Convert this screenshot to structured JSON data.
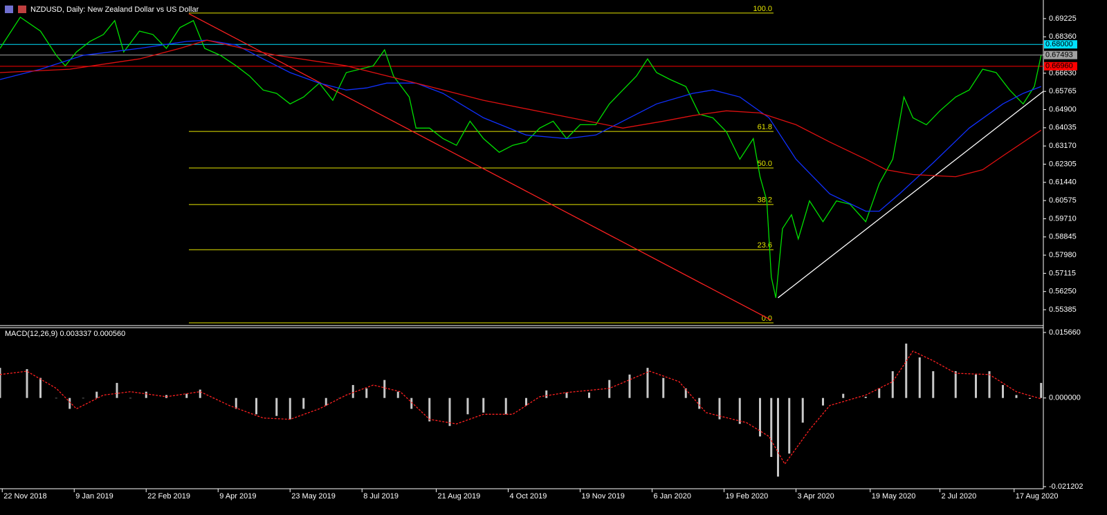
{
  "chart_data": [
    {
      "type": "line",
      "title": "NZDUSD, Daily:  New Zealand Dollar vs US Dollar",
      "xlim": [
        0,
        464
      ],
      "ylim": [
        0.5463,
        0.7011
      ],
      "yticks": [
        0.69225,
        {
          "value": 0.6836,
          "label": "0.68360"
        },
        0.67495,
        {
          "value": 0.6663,
          "label": "0.66630"
        },
        0.65765,
        {
          "value": 0.649,
          "label": "0.64900"
        },
        0.64035,
        {
          "value": 0.6317,
          "label": "0.63170"
        },
        0.62305,
        {
          "value": 0.6144,
          "label": "0.61440"
        },
        0.60575,
        {
          "value": 0.5971,
          "label": "0.59710"
        },
        0.58845,
        {
          "value": 0.5798,
          "label": "0.57980"
        },
        0.57115,
        {
          "value": 0.5625,
          "label": "0.56250"
        },
        0.55385
      ],
      "series": [
        {
          "color": "#00e000",
          "x": [
            0,
            9,
            18,
            25,
            29,
            34,
            40,
            46,
            51,
            55,
            62,
            68,
            74,
            80,
            86,
            91,
            98,
            105,
            111,
            117,
            123,
            129,
            135,
            142,
            148,
            154,
            160,
            166,
            171,
            175,
            182,
            185,
            191,
            197,
            203,
            209,
            215,
            222,
            228,
            234,
            240,
            246,
            252,
            258,
            265,
            271,
            277,
            283,
            288,
            292,
            298,
            305,
            311,
            317,
            323,
            329,
            335,
            338,
            341,
            343,
            345,
            348,
            352,
            355,
            360,
            366,
            372,
            378,
            385,
            391,
            397,
            402,
            406,
            412,
            418,
            425,
            431,
            437,
            443,
            449,
            455,
            460,
            463
          ],
          "values": [
            0.6781,
            0.6929,
            0.6863,
            0.6748,
            0.6698,
            0.6764,
            0.6814,
            0.6847,
            0.6913,
            0.6764,
            0.6863,
            0.6847,
            0.6781,
            0.688,
            0.6913,
            0.6781,
            0.6748,
            0.6698,
            0.6649,
            0.6583,
            0.6567,
            0.6517,
            0.655,
            0.6616,
            0.6534,
            0.6666,
            0.6682,
            0.6698,
            0.6774,
            0.6649,
            0.655,
            0.6402,
            0.6402,
            0.6352,
            0.632,
            0.6435,
            0.6352,
            0.6287,
            0.632,
            0.6336,
            0.6402,
            0.6435,
            0.6352,
            0.6418,
            0.6418,
            0.6517,
            0.6583,
            0.6649,
            0.6731,
            0.6666,
            0.6633,
            0.66,
            0.6468,
            0.6451,
            0.6385,
            0.6254,
            0.6352,
            0.6171,
            0.6056,
            0.5694,
            0.5595,
            0.5924,
            0.599,
            0.5875,
            0.6056,
            0.5957,
            0.6056,
            0.604,
            0.5957,
            0.6138,
            0.6254,
            0.655,
            0.6451,
            0.6418,
            0.6484,
            0.655,
            0.6583,
            0.6682,
            0.6666,
            0.6583,
            0.6517,
            0.66,
            0.6748
          ]
        },
        {
          "color": "#1030ff",
          "x": [
            0,
            18,
            37,
            62,
            83,
            92,
            105,
            117,
            129,
            142,
            154,
            163,
            172,
            185,
            197,
            215,
            234,
            252,
            265,
            277,
            292,
            308,
            317,
            329,
            342,
            354,
            369,
            385,
            391,
            400,
            415,
            431,
            446,
            455,
            463
          ],
          "values": [
            0.6633,
            0.6682,
            0.6748,
            0.6781,
            0.6814,
            0.682,
            0.6797,
            0.6731,
            0.6666,
            0.6616,
            0.6583,
            0.6593,
            0.6616,
            0.6616,
            0.6567,
            0.6451,
            0.6369,
            0.6352,
            0.6369,
            0.6435,
            0.6517,
            0.6567,
            0.6583,
            0.655,
            0.6451,
            0.6254,
            0.6089,
            0.6007,
            0.6007,
            0.6089,
            0.6237,
            0.6402,
            0.6517,
            0.6567,
            0.66
          ]
        },
        {
          "color": "#e01010",
          "x": [
            0,
            31,
            62,
            80,
            92,
            108,
            123,
            154,
            185,
            215,
            246,
            277,
            295,
            308,
            323,
            338,
            354,
            369,
            385,
            394,
            406,
            425,
            437,
            446,
            463
          ],
          "values": [
            0.6666,
            0.6682,
            0.6731,
            0.6781,
            0.682,
            0.6781,
            0.6748,
            0.6698,
            0.6616,
            0.6534,
            0.6468,
            0.6402,
            0.6435,
            0.6461,
            0.6484,
            0.6474,
            0.6418,
            0.6336,
            0.6254,
            0.6204,
            0.6181,
            0.6171,
            0.6204,
            0.627,
            0.6392
          ]
        }
      ],
      "hlines": [
        {
          "value": 0.68,
          "label": "0.68000",
          "color": "#00e0ff"
        },
        {
          "value": 0.67493,
          "label": "0.67493",
          "color": "#a0a0a0"
        },
        {
          "value": 0.6696,
          "label": "0.66960",
          "color": "#ff0000"
        }
      ],
      "fibonacci": {
        "levels": [
          {
            "value": 100,
            "label": "100.0"
          },
          61.8,
          {
            "value": 50,
            "label": "50.0"
          },
          38.2,
          23.6,
          {
            "value": 0,
            "label": "0.0"
          }
        ],
        "high": 0.6949,
        "low": 0.5476,
        "x": [
          84,
          344
        ],
        "color": "#e6e600"
      },
      "trendlines": [
        {
          "x": [
            84,
            343
          ],
          "values": [
            0.6946,
            0.5489
          ],
          "color": "#ff2020"
        },
        {
          "x": [
            346,
            464
          ],
          "values": [
            0.5595,
            0.6577
          ],
          "color": "#ffffff"
        }
      ]
    },
    {
      "type": "macd",
      "title": "MACD(12,26,9) 0.003337 0.000560",
      "xlim": [
        0,
        464
      ],
      "ylim": [
        -0.0217,
        0.01681
      ],
      "yticks": [
        {
          "value": 0.01566,
          "label": "0.015660"
        },
        {
          "value": 0,
          "label": "0.000000"
        },
        -0.021202
      ],
      "xticks": [
        {
          "value": 1,
          "label": "22 Nov 2018"
        },
        {
          "value": 33,
          "label": "9 Jan 2019"
        },
        {
          "value": 65,
          "label": "22 Feb 2019"
        },
        {
          "value": 97,
          "label": "9 Apr 2019"
        },
        {
          "value": 129,
          "label": "23 May 2019"
        },
        {
          "value": 161,
          "label": "8 Jul 2019"
        },
        {
          "value": 194,
          "label": "21 Aug 2019"
        },
        {
          "value": 226,
          "label": "4 Oct 2019"
        },
        {
          "value": 258,
          "label": "19 Nov 2019"
        },
        {
          "value": 290,
          "label": "6 Jan 2020"
        },
        {
          "value": 322,
          "label": "19 Feb 2020"
        },
        {
          "value": 354,
          "label": "3 Apr 2020"
        },
        {
          "value": 387,
          "label": "19 May 2020"
        },
        {
          "value": 418,
          "label": "2 Jul 2020"
        },
        {
          "value": 451,
          "label": "17 Aug 2020"
        }
      ],
      "histogram": {
        "color": "#c8c8c8",
        "x": [
          0,
          12,
          18,
          25,
          31,
          37,
          43,
          52,
          58,
          65,
          74,
          83,
          89,
          95,
          105,
          114,
          123,
          129,
          135,
          145,
          151,
          157,
          163,
          171,
          177,
          183,
          191,
          200,
          208,
          215,
          225,
          234,
          243,
          252,
          262,
          271,
          280,
          288,
          295,
          305,
          311,
          320,
          329,
          338,
          343,
          346,
          351,
          357,
          366,
          375,
          385,
          391,
          397,
          403,
          409,
          415,
          425,
          434,
          440,
          446,
          452,
          458,
          463
        ],
        "values": [
          0.0072,
          0.0069,
          0.0048,
          0,
          -0.0026,
          0,
          0.0015,
          0.0036,
          0,
          0.0015,
          0.0007,
          0.001,
          0.002,
          0,
          -0.0026,
          -0.0039,
          -0.0043,
          -0.0051,
          -0.0026,
          -0.0018,
          0,
          0.0031,
          0.0023,
          0.0043,
          0.0015,
          -0.0026,
          -0.0056,
          -0.0067,
          -0.0039,
          -0.0035,
          -0.0039,
          -0.0018,
          0.0018,
          0.0013,
          0.0013,
          0.0043,
          0.0056,
          0.0072,
          0.0048,
          0.0023,
          -0.0026,
          -0.0051,
          -0.0062,
          -0.0092,
          -0.0141,
          -0.0188,
          -0.0133,
          -0.0059,
          -0.0018,
          0.001,
          0.0003,
          0.0023,
          0.0064,
          0.013,
          0.0097,
          0.0064,
          0.0064,
          0.0056,
          0.0064,
          0.0031,
          0.0007,
          -0.0002,
          0.0036
        ]
      },
      "signal": {
        "color": "#ff2020",
        "x": [
          0,
          12,
          25,
          34,
          46,
          58,
          74,
          89,
          102,
          117,
          129,
          142,
          154,
          166,
          178,
          191,
          203,
          215,
          228,
          240,
          252,
          271,
          289,
          302,
          314,
          332,
          342,
          349,
          360,
          369,
          385,
          397,
          406,
          415,
          425,
          440,
          452,
          463
        ],
        "values": [
          0.0056,
          0.0064,
          0.0023,
          -0.0026,
          0.0007,
          0.0015,
          0.0003,
          0.0015,
          -0.0018,
          -0.0048,
          -0.0051,
          -0.0026,
          0.0007,
          0.0031,
          0.0015,
          -0.0051,
          -0.0062,
          -0.0039,
          -0.0039,
          0.0003,
          0.0013,
          0.0023,
          0.0064,
          0.0039,
          -0.0035,
          -0.0059,
          -0.0092,
          -0.0158,
          -0.0076,
          -0.0018,
          0.0007,
          0.0039,
          0.0112,
          0.0089,
          0.0059,
          0.0056,
          0.0015,
          -0.0002
        ]
      }
    }
  ]
}
